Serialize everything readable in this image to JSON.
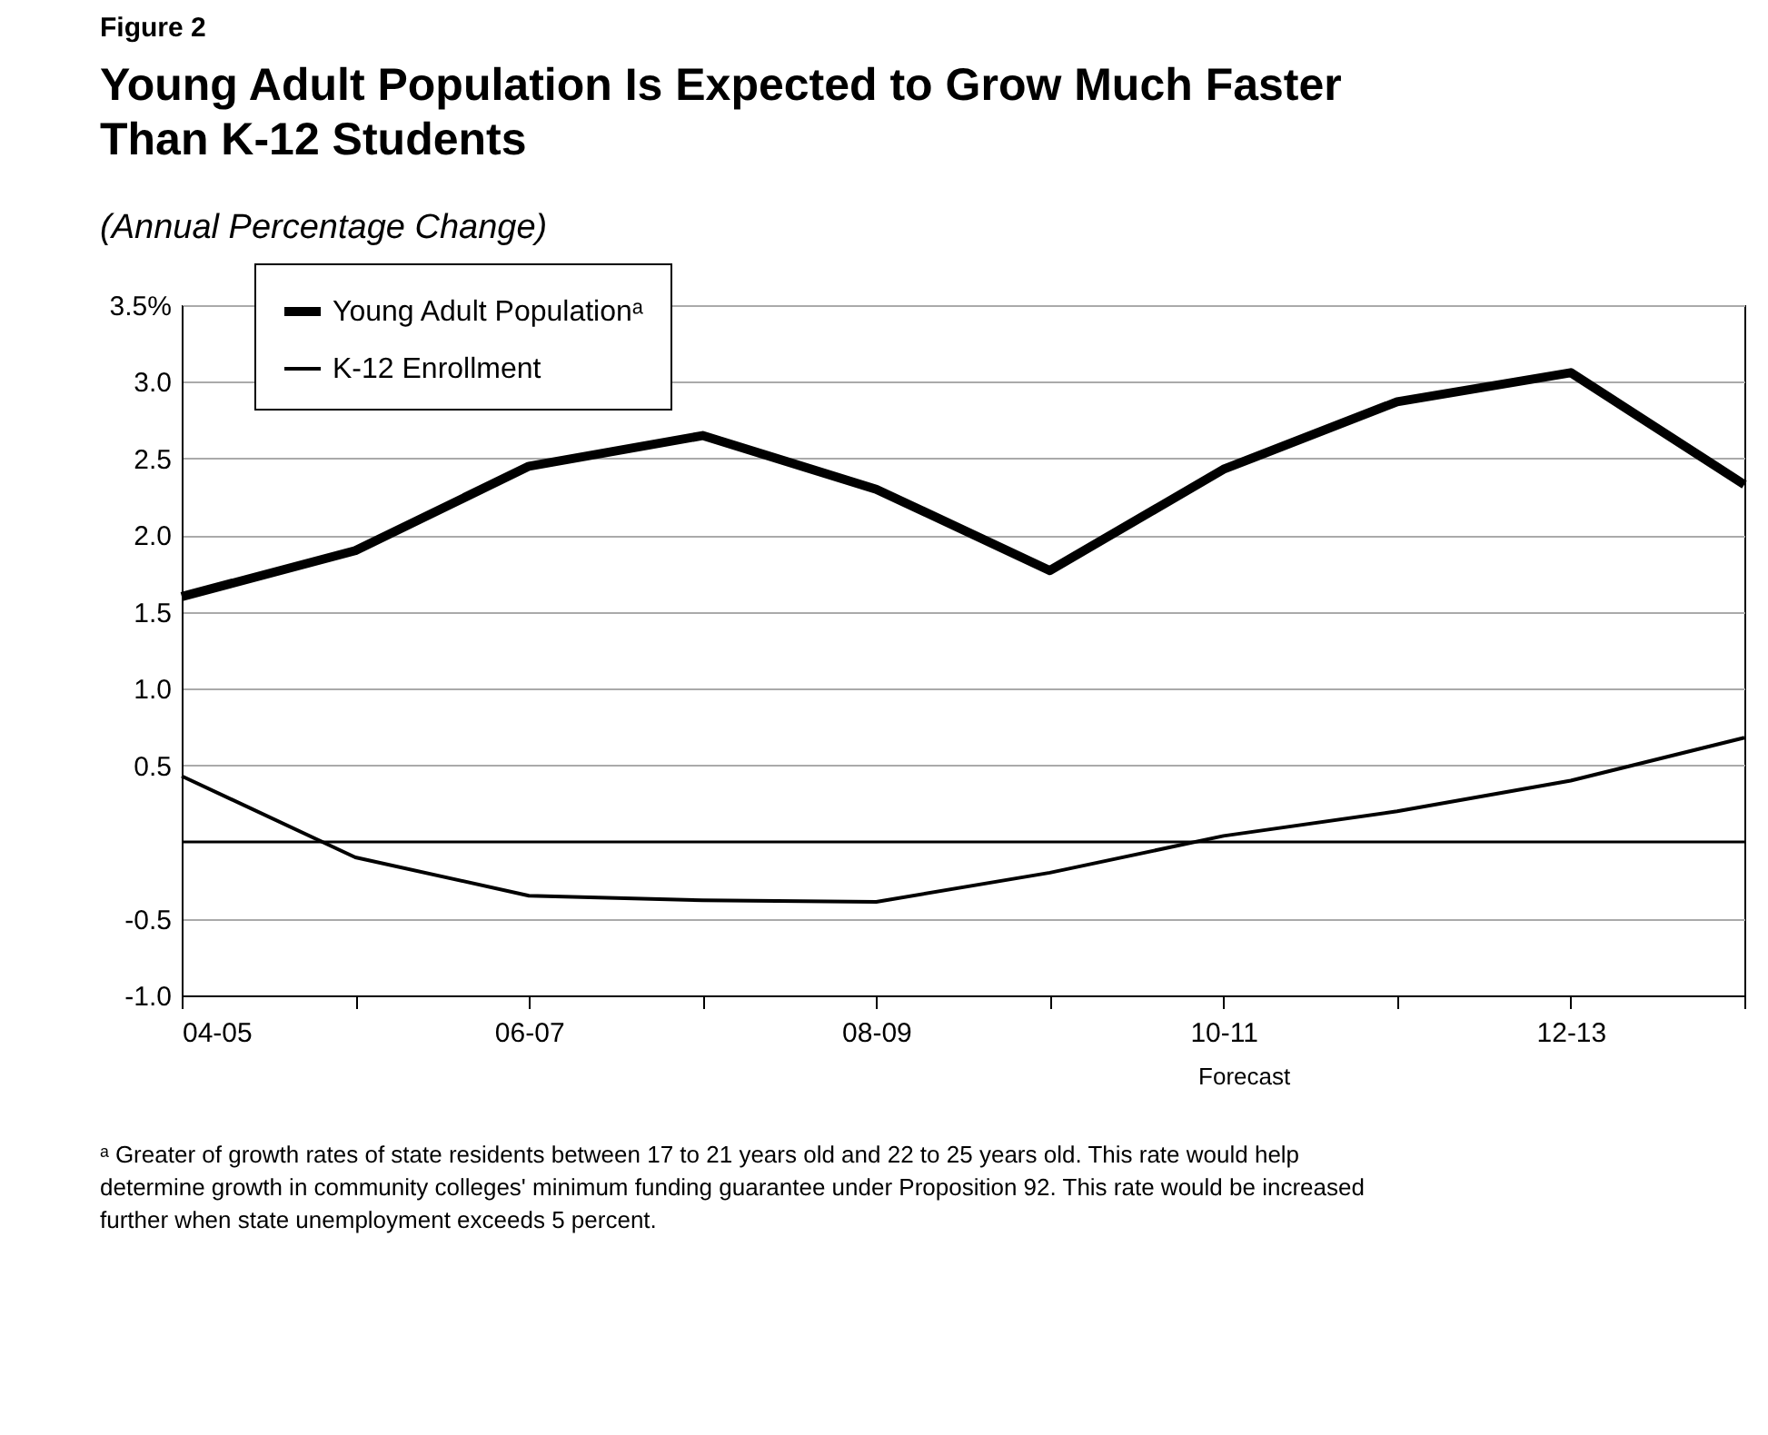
{
  "chart_data": {
    "type": "line",
    "title": "Young Adult Population Is Expected to Grow Much Faster Than K-12 Students",
    "ylabel": "(Annual Percentage Change)",
    "annotations": [
      "Figure 2",
      "Forecast",
      "ᵃ Greater of growth rates of state residents between 17 to 21 years old and 22 to 25 years old. This rate would help determine growth in community colleges' minimum funding guarantee under Proposition 92. This rate would be increased further when state unemployment exceeds 5 percent."
    ],
    "categories": [
      "04-05",
      null,
      "06-07",
      null,
      "08-09",
      null,
      "10-11",
      null,
      "12-13",
      null
    ],
    "series": [
      {
        "name": "Young Adult Populationᵃ",
        "color": "#000000",
        "values": [
          1.6,
          1.9,
          2.45,
          2.65,
          2.3,
          1.77,
          2.43,
          2.87,
          3.06,
          2.33
        ]
      },
      {
        "name": "K-12 Enrollment",
        "color": "#000000",
        "values": [
          0.43,
          -0.1,
          -0.35,
          -0.38,
          -0.39,
          -0.2,
          0.04,
          0.2,
          0.4,
          0.68
        ]
      }
    ],
    "ylim": [
      -1.0,
      3.5
    ],
    "yticks": [
      {
        "value": 3.5,
        "label": "3.5%"
      },
      {
        "value": 3.0,
        "label": "3.0"
      },
      {
        "value": 2.5,
        "label": "2.5"
      },
      {
        "value": 2.0,
        "label": "2.0"
      },
      {
        "value": 1.5,
        "label": "1.5"
      },
      {
        "value": 1.0,
        "label": "1.0"
      },
      {
        "value": 0.5,
        "label": "0.5"
      },
      {
        "value": -0.5,
        "label": "-0.5"
      },
      {
        "value": -1.0,
        "label": "-1.0"
      }
    ],
    "ref_lines": [
      {
        "axis": "y",
        "value": 0,
        "color": "#000000"
      }
    ],
    "grid": "y",
    "legend": "left",
    "marker": "none",
    "line_style": "solid"
  }
}
